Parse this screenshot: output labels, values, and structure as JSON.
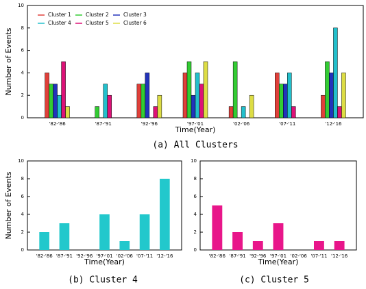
{
  "chart_data": [
    {
      "type": "bar",
      "caption": "(a) All Clusters",
      "xlabel": "Time(Year)",
      "ylabel": "Number of Events",
      "categories": [
        "'82-'86",
        "'87-'91",
        "'92-'96",
        "'97-'01",
        "'02-'06",
        "'07-'11",
        "'12-'16"
      ],
      "series": [
        {
          "name": "Cluster 1",
          "color": "#e0403a",
          "values": [
            4,
            0,
            3,
            4,
            1,
            4,
            2
          ]
        },
        {
          "name": "Cluster 2",
          "color": "#33cc33",
          "values": [
            3,
            1,
            3,
            5,
            5,
            3,
            5
          ]
        },
        {
          "name": "Cluster 3",
          "color": "#2233bb",
          "values": [
            3,
            0,
            4,
            2,
            0,
            3,
            4
          ]
        },
        {
          "name": "Cluster 4",
          "color": "#22c0cc",
          "values": [
            2,
            3,
            0,
            4,
            1,
            4,
            8
          ]
        },
        {
          "name": "Cluster 5",
          "color": "#dd1177",
          "values": [
            5,
            2,
            1,
            3,
            0,
            1,
            1
          ]
        },
        {
          "name": "Cluster 6",
          "color": "#dddd44",
          "values": [
            1,
            0,
            2,
            5,
            2,
            0,
            4
          ]
        }
      ],
      "ylim": [
        0,
        10
      ],
      "yticks": [
        0,
        2,
        4,
        6,
        8,
        10
      ],
      "legend": "upper left"
    },
    {
      "type": "bar",
      "caption": "(b) Cluster 4",
      "xlabel": "Time(Year)",
      "ylabel": "Number of Events",
      "categories": [
        "'82-'86",
        "'87-'91",
        "'92-'96",
        "'97-'01",
        "'02-'06",
        "'07-'11",
        "'12-'16"
      ],
      "values": [
        2,
        3,
        0,
        4,
        1,
        4,
        8
      ],
      "color": "#22c8cc",
      "ylim": [
        0,
        10
      ],
      "yticks": [
        0,
        2,
        4,
        6,
        8,
        10
      ]
    },
    {
      "type": "bar",
      "caption": "(c) Cluster 5",
      "xlabel": "Time(Year)",
      "categories": [
        "'82-'86",
        "'87-'91",
        "'92-'96",
        "'97-'01",
        "'02-'06",
        "'07-'11",
        "'12-'16"
      ],
      "values": [
        5,
        2,
        1,
        3,
        0,
        1,
        1
      ],
      "color": "#e8168a",
      "ylim": [
        0,
        10
      ],
      "yticks": [
        0,
        2,
        4,
        6,
        8,
        10
      ]
    }
  ]
}
